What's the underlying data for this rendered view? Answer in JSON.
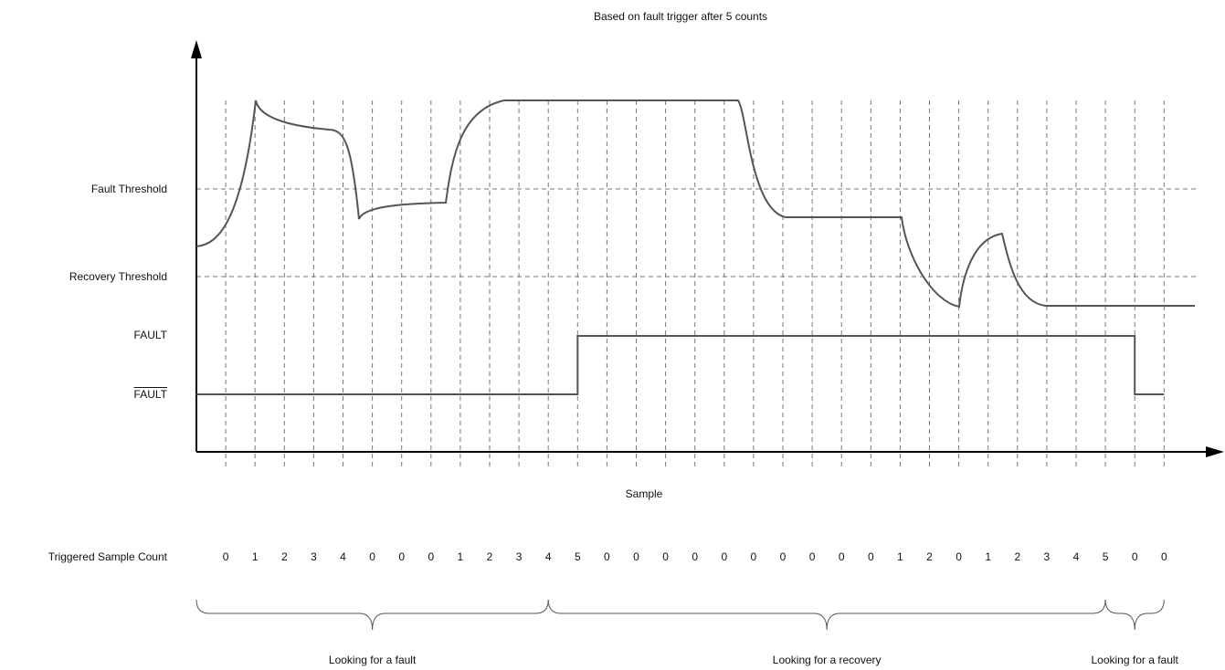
{
  "title": "Based on fault trigger after 5 counts",
  "labels": {
    "fault_threshold": "Fault Threshold",
    "recovery_threshold": "Recovery Threshold",
    "fault": "FAULT",
    "fault_bar": "FAULT",
    "x_axis": "Sample",
    "count_row": "Triggered Sample Count"
  },
  "counts": [
    "0",
    "1",
    "2",
    "3",
    "4",
    "0",
    "0",
    "0",
    "1",
    "2",
    "3",
    "4",
    "5",
    "0",
    "0",
    "0",
    "0",
    "0",
    "0",
    "0",
    "0",
    "0",
    "0",
    "1",
    "2",
    "0",
    "1",
    "2",
    "3",
    "4",
    "5",
    "0",
    "0"
  ],
  "phases": [
    {
      "label": "Looking for a fault",
      "from_sample": 0,
      "to_sample": 12
    },
    {
      "label": "Looking for a recovery",
      "from_sample": 12,
      "to_sample": 31
    },
    {
      "label": "Looking for a fault",
      "from_sample": 31,
      "to_sample": 33
    }
  ],
  "fault_signal": {
    "assert_at_sample": 12,
    "deassert_at_sample": 31
  },
  "colors": {
    "line": "#555555",
    "dashed": "#777777",
    "axis": "#000000"
  }
}
